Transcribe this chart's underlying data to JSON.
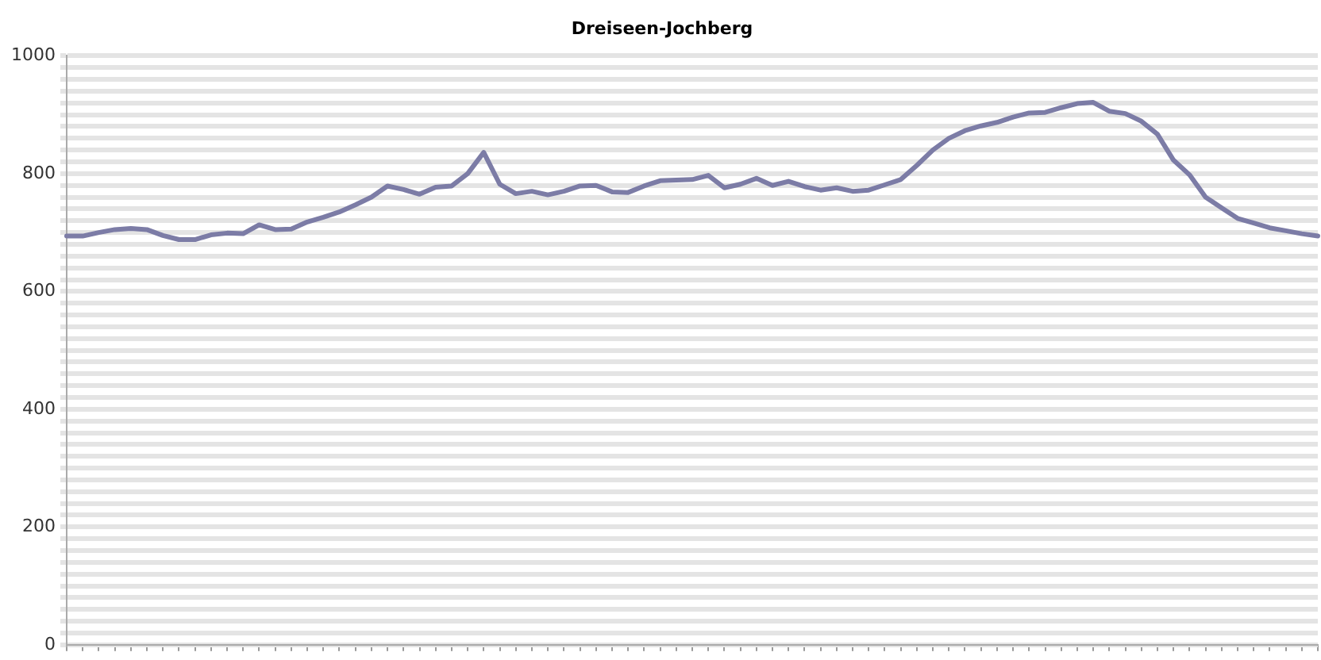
{
  "chart_data": {
    "type": "line",
    "title": "Dreiseen-Jochberg",
    "categories": [
      null,
      null,
      null,
      null,
      null,
      null,
      null,
      null,
      null,
      null,
      null,
      null,
      null,
      null,
      null,
      null,
      null,
      null,
      null,
      null,
      null,
      null,
      null,
      null,
      null,
      null,
      null,
      null,
      null,
      null,
      null,
      null,
      null,
      null,
      null,
      null,
      null,
      null,
      null,
      null,
      null,
      null,
      null,
      null,
      null,
      null,
      null,
      null,
      null,
      null,
      null,
      null,
      null,
      null,
      null,
      null,
      null,
      null,
      null,
      null,
      null,
      null,
      null,
      null,
      null,
      null,
      null,
      null,
      null,
      null,
      null,
      null,
      null,
      null,
      null,
      null,
      null,
      null,
      null
    ],
    "series": [
      {
        "color": "#7c7ca6",
        "values": [
          694,
          694,
          700,
          705,
          707,
          705,
          695,
          688,
          688,
          696,
          699,
          698,
          713,
          705,
          706,
          718,
          726,
          735,
          747,
          760,
          779,
          773,
          765,
          777,
          779,
          800,
          836,
          782,
          766,
          770,
          764,
          770,
          779,
          780,
          769,
          768,
          779,
          788,
          789,
          790,
          797,
          776,
          782,
          792,
          780,
          787,
          778,
          772,
          776,
          770,
          772,
          781,
          790,
          814,
          840,
          860,
          873,
          881,
          887,
          896,
          903,
          904,
          912,
          919,
          921,
          906,
          902,
          889,
          867,
          823,
          798,
          760,
          742,
          724,
          716,
          708,
          703,
          698,
          694
        ]
      }
    ],
    "ylim": [
      0,
      1000
    ],
    "yticks": [
      0,
      {
        "value": 20,
        "label": null
      },
      {
        "value": 40,
        "label": null
      },
      {
        "value": 60,
        "label": null
      },
      {
        "value": 80,
        "label": null
      },
      {
        "value": 100,
        "label": null
      },
      {
        "value": 120,
        "label": null
      },
      {
        "value": 140,
        "label": null
      },
      {
        "value": 160,
        "label": null
      },
      {
        "value": 180,
        "label": null
      },
      200,
      {
        "value": 220,
        "label": null
      },
      {
        "value": 240,
        "label": null
      },
      {
        "value": 260,
        "label": null
      },
      {
        "value": 280,
        "label": null
      },
      {
        "value": 300,
        "label": null
      },
      {
        "value": 320,
        "label": null
      },
      {
        "value": 340,
        "label": null
      },
      {
        "value": 360,
        "label": null
      },
      {
        "value": 380,
        "label": null
      },
      400,
      {
        "value": 420,
        "label": null
      },
      {
        "value": 440,
        "label": null
      },
      {
        "value": 460,
        "label": null
      },
      {
        "value": 480,
        "label": null
      },
      {
        "value": 500,
        "label": null
      },
      {
        "value": 520,
        "label": null
      },
      {
        "value": 540,
        "label": null
      },
      {
        "value": 560,
        "label": null
      },
      {
        "value": 580,
        "label": null
      },
      600,
      {
        "value": 620,
        "label": null
      },
      {
        "value": 640,
        "label": null
      },
      {
        "value": 660,
        "label": null
      },
      {
        "value": 680,
        "label": null
      },
      {
        "value": 700,
        "label": null
      },
      {
        "value": 720,
        "label": null
      },
      {
        "value": 740,
        "label": null
      },
      {
        "value": 760,
        "label": null
      },
      {
        "value": 780,
        "label": null
      },
      800,
      {
        "value": 820,
        "label": null
      },
      {
        "value": 840,
        "label": null
      },
      {
        "value": 860,
        "label": null
      },
      {
        "value": 880,
        "label": null
      },
      {
        "value": 900,
        "label": null
      },
      {
        "value": 920,
        "label": null
      },
      {
        "value": 940,
        "label": null
      },
      {
        "value": 960,
        "label": null
      },
      {
        "value": 980,
        "label": null
      },
      1000
    ],
    "grid": "y",
    "tick_labels": "y",
    "marker": "none",
    "line_style": "solid",
    "legend": false
  }
}
